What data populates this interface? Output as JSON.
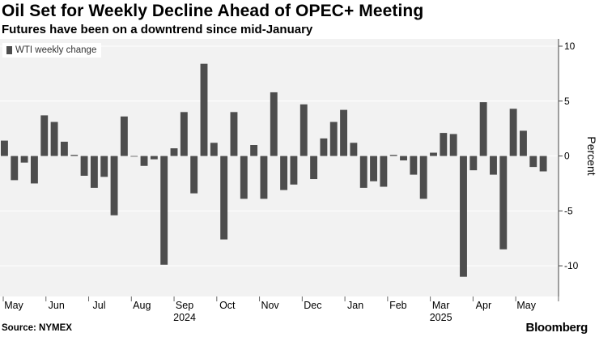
{
  "header": {
    "title": "Oil Set for Weekly Decline Ahead of OPEC+ Meeting",
    "subtitle": "Futures have been on a downtrend since mid-January"
  },
  "footer": {
    "source": "Source: NYMEX",
    "brand": "Bloomberg"
  },
  "colors": {
    "bar": "#4d4d4d",
    "plot_background": "#f2f2f2",
    "gridline": "#ffffff",
    "axis_text": "#000000"
  },
  "chart_data": {
    "type": "bar",
    "title": "",
    "xlabel": "",
    "ylabel": "Percent",
    "ylim": [
      -12.5,
      10
    ],
    "yticks": [
      10,
      5,
      0,
      -5,
      -10
    ],
    "ytick_labels": [
      "10",
      "5",
      "0",
      "-5",
      "-10"
    ],
    "grid": "horizontal",
    "legend_position": "top-left",
    "x_month_labels": [
      "May",
      "Jun",
      "Jul",
      "Aug",
      "Sep",
      "Oct",
      "Nov",
      "Dec",
      "Jan",
      "Feb",
      "Mar",
      "Apr",
      "May"
    ],
    "x_year_labels": [
      {
        "label": "2024",
        "month_index": 4
      },
      {
        "label": "2025",
        "month_index": 10
      }
    ],
    "series": [
      {
        "name": "WTI weekly change",
        "values": [
          1.4,
          -2.2,
          -0.6,
          -2.5,
          3.7,
          3.1,
          1.3,
          0.1,
          -1.8,
          -2.9,
          -1.9,
          -5.4,
          3.6,
          0,
          -0.9,
          -0.3,
          -9.9,
          0.7,
          4.0,
          -3.4,
          8.4,
          1.2,
          -7.6,
          4.0,
          -3.9,
          1.0,
          -3.9,
          5.8,
          -3.1,
          -2.6,
          4.7,
          -2.1,
          1.6,
          3.1,
          4.2,
          1.2,
          -2.9,
          -2.3,
          -2.8,
          0.1,
          -0.4,
          -1.7,
          -3.9,
          0.3,
          2.1,
          2.0,
          -11.0,
          -1.3,
          4.9,
          -1.7,
          -8.5,
          4.3,
          2.3,
          -1.0,
          -1.4
        ]
      }
    ]
  }
}
